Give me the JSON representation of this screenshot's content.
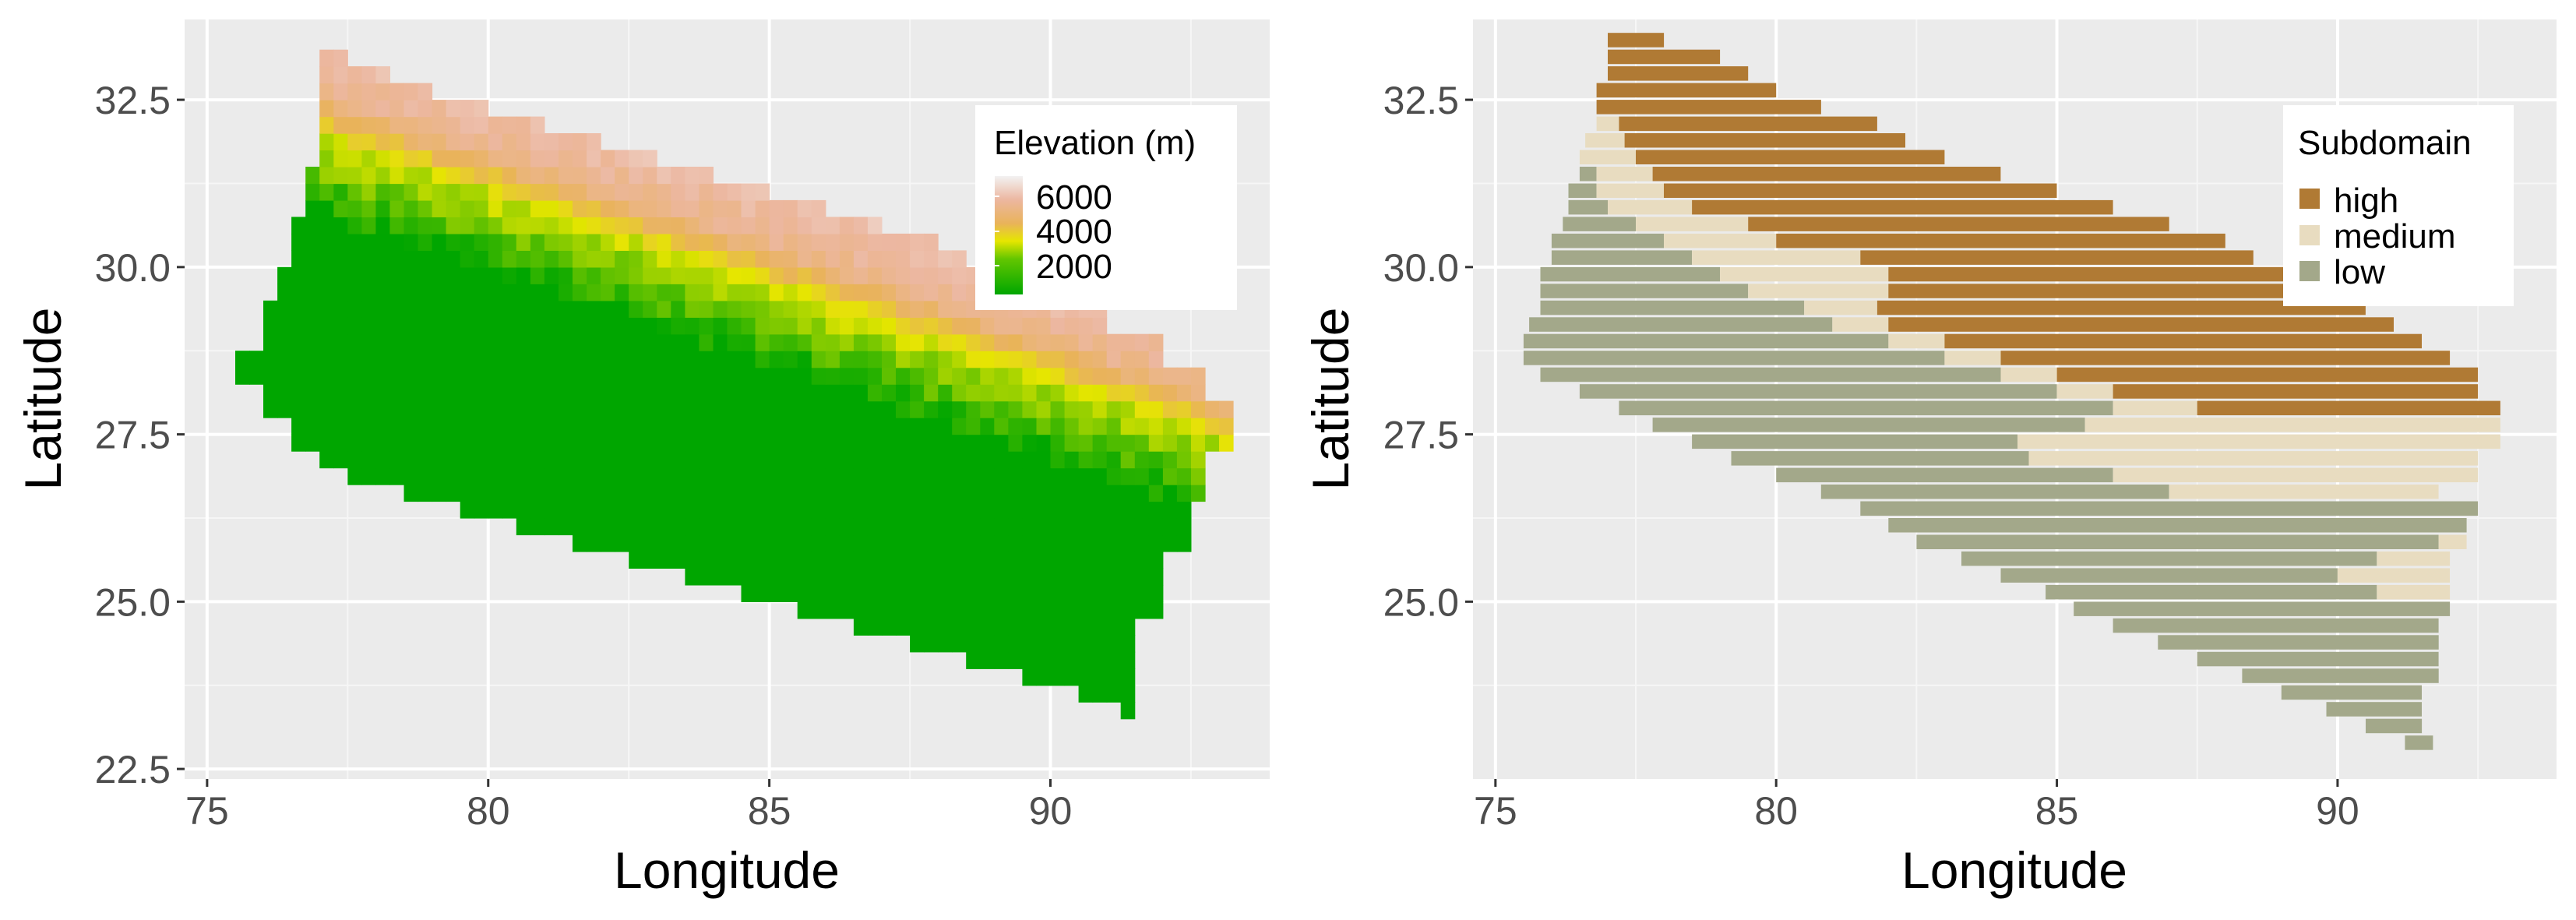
{
  "chart_data": [
    {
      "type": "heatmap",
      "xlabel": "Longitude",
      "ylabel": "Latitude",
      "xlim": [
        74.6,
        93.9
      ],
      "ylim": [
        22.35,
        33.7
      ],
      "x_ticks": [
        75,
        80,
        85,
        90
      ],
      "y_ticks": [
        22.5,
        25.0,
        27.5,
        30.0,
        32.5
      ],
      "x_tick_labels": [
        "75",
        "80",
        "85",
        "90"
      ],
      "y_tick_labels": [
        "22.5",
        "25.0",
        "27.5",
        "30.0",
        "32.5"
      ],
      "cell_size": [
        0.5,
        0.25
      ],
      "region_polygon": [
        [
          77.1,
          33.25
        ],
        [
          77.5,
          33.25
        ],
        [
          77.5,
          33.0
        ],
        [
          78.3,
          33.0
        ],
        [
          78.3,
          32.75
        ],
        [
          79.0,
          32.75
        ],
        [
          79.0,
          32.5
        ],
        [
          80.0,
          32.5
        ],
        [
          80.0,
          32.25
        ],
        [
          81.0,
          32.25
        ],
        [
          81.0,
          32.0
        ],
        [
          82.0,
          32.0
        ],
        [
          82.0,
          31.75
        ],
        [
          83.0,
          31.75
        ],
        [
          83.0,
          31.5
        ],
        [
          84.0,
          31.5
        ],
        [
          84.0,
          31.25
        ],
        [
          85.0,
          31.25
        ],
        [
          85.0,
          31.0
        ],
        [
          86.0,
          31.0
        ],
        [
          86.0,
          30.75
        ],
        [
          87.0,
          30.75
        ],
        [
          87.0,
          30.5
        ],
        [
          88.0,
          30.5
        ],
        [
          88.0,
          30.25
        ],
        [
          88.5,
          30.25
        ],
        [
          88.5,
          30.0
        ],
        [
          89.5,
          30.0
        ],
        [
          89.5,
          29.75
        ],
        [
          90.5,
          29.75
        ],
        [
          90.5,
          29.5
        ],
        [
          91.0,
          29.5
        ],
        [
          91.0,
          29.0
        ],
        [
          92.0,
          29.0
        ],
        [
          92.0,
          28.5
        ],
        [
          92.7,
          28.5
        ],
        [
          92.7,
          28.0
        ],
        [
          93.2,
          28.0
        ],
        [
          93.2,
          27.25
        ],
        [
          92.7,
          27.25
        ],
        [
          92.7,
          26.5
        ],
        [
          92.5,
          26.5
        ],
        [
          92.5,
          25.75
        ],
        [
          92.0,
          25.75
        ],
        [
          92.0,
          24.75
        ],
        [
          91.5,
          24.75
        ],
        [
          91.5,
          24.0
        ],
        [
          91.5,
          23.25
        ],
        [
          91.2,
          23.25
        ],
        [
          91.2,
          23.5
        ],
        [
          90.5,
          23.5
        ],
        [
          90.5,
          23.75
        ],
        [
          89.5,
          23.75
        ],
        [
          89.5,
          24.0
        ],
        [
          88.5,
          24.0
        ],
        [
          88.5,
          24.25
        ],
        [
          87.5,
          24.25
        ],
        [
          87.5,
          24.5
        ],
        [
          86.5,
          24.5
        ],
        [
          86.5,
          24.75
        ],
        [
          85.5,
          24.75
        ],
        [
          85.5,
          25.0
        ],
        [
          84.5,
          25.0
        ],
        [
          84.5,
          25.25
        ],
        [
          83.5,
          25.25
        ],
        [
          83.5,
          25.5
        ],
        [
          82.5,
          25.5
        ],
        [
          82.5,
          25.75
        ],
        [
          81.5,
          25.75
        ],
        [
          81.5,
          26.0
        ],
        [
          80.5,
          26.0
        ],
        [
          80.5,
          26.25
        ],
        [
          79.5,
          26.25
        ],
        [
          79.5,
          26.5
        ],
        [
          78.5,
          26.5
        ],
        [
          78.5,
          26.75
        ],
        [
          77.5,
          26.75
        ],
        [
          77.5,
          27.0
        ],
        [
          77.0,
          27.0
        ],
        [
          77.0,
          27.25
        ],
        [
          76.5,
          27.25
        ],
        [
          76.5,
          27.75
        ],
        [
          76.0,
          27.75
        ],
        [
          76.0,
          28.25
        ],
        [
          75.6,
          28.25
        ],
        [
          75.6,
          28.75
        ],
        [
          75.9,
          28.75
        ],
        [
          75.9,
          29.5
        ],
        [
          76.2,
          29.5
        ],
        [
          76.2,
          30.0
        ],
        [
          76.5,
          30.0
        ],
        [
          76.5,
          30.75
        ],
        [
          76.8,
          30.75
        ],
        [
          76.8,
          31.5
        ],
        [
          76.9,
          31.5
        ],
        [
          76.9,
          32.25
        ],
        [
          77.0,
          32.25
        ],
        [
          77.0,
          32.75
        ],
        [
          77.1,
          32.75
        ]
      ],
      "legend": {
        "title": "Elevation (m)",
        "labels": [
          "6000",
          "4000",
          "2000"
        ],
        "values": [
          6000,
          4000,
          2000
        ],
        "color_stops": [
          {
            "value": 6500,
            "color": "#f2f2f2"
          },
          {
            "value": 5200,
            "color": "#ecb7a0"
          },
          {
            "value": 4000,
            "color": "#e9b35a"
          },
          {
            "value": 3000,
            "color": "#e6e600"
          },
          {
            "value": 1500,
            "color": "#00a600"
          }
        ]
      }
    },
    {
      "type": "heatmap",
      "xlabel": "Longitude",
      "ylabel": "Latitude",
      "xlim": [
        74.6,
        93.9
      ],
      "ylim": [
        22.35,
        33.7
      ],
      "x_ticks": [
        75,
        80,
        85,
        90
      ],
      "y_ticks": [
        25.0,
        27.5,
        30.0,
        32.5
      ],
      "x_tick_labels": [
        "75",
        "80",
        "85",
        "90"
      ],
      "y_tick_labels": [
        "25.0",
        "27.5",
        "30.0",
        "32.5"
      ],
      "cell_size": [
        0.5,
        0.25
      ],
      "legend": {
        "title": "Subdomain",
        "categories": [
          "high",
          "medium",
          "low"
        ],
        "colors": [
          "#b07a34",
          "#e8dcc0",
          "#a3a88a"
        ]
      },
      "rows": [
        {
          "lat": 33.25,
          "low": null,
          "mid": null,
          "hi": [
            77.0,
            78.0
          ]
        },
        {
          "lat": 33.0,
          "low": null,
          "mid": null,
          "hi": [
            77.0,
            79.0
          ]
        },
        {
          "lat": 32.75,
          "low": null,
          "mid": null,
          "hi": [
            77.0,
            79.5
          ]
        },
        {
          "lat": 32.5,
          "low": null,
          "mid": null,
          "hi": [
            76.8,
            80.0
          ]
        },
        {
          "lat": 32.25,
          "low": null,
          "mid": null,
          "hi": [
            76.8,
            80.8
          ]
        },
        {
          "lat": 32.0,
          "low": null,
          "mid": [
            76.8,
            77.2
          ],
          "hi": [
            77.2,
            81.8
          ]
        },
        {
          "lat": 31.75,
          "low": null,
          "mid": [
            76.6,
            77.3
          ],
          "hi": [
            77.3,
            82.3
          ]
        },
        {
          "lat": 31.5,
          "low": null,
          "mid": [
            76.5,
            77.5
          ],
          "hi": [
            77.5,
            83.0
          ]
        },
        {
          "lat": 31.25,
          "low": [
            76.5,
            76.8
          ],
          "mid": [
            76.8,
            77.8
          ],
          "hi": [
            77.8,
            84.0
          ]
        },
        {
          "lat": 31.0,
          "low": [
            76.3,
            76.8
          ],
          "mid": [
            76.8,
            78.0
          ],
          "hi": [
            78.0,
            85.0
          ]
        },
        {
          "lat": 30.75,
          "low": [
            76.3,
            77.0
          ],
          "mid": [
            77.0,
            78.5
          ],
          "hi": [
            78.5,
            86.0
          ]
        },
        {
          "lat": 30.5,
          "low": [
            76.2,
            77.5
          ],
          "mid": [
            77.5,
            79.5
          ],
          "hi": [
            79.5,
            87.0
          ]
        },
        {
          "lat": 30.25,
          "low": [
            76.0,
            78.0
          ],
          "mid": [
            78.0,
            80.0
          ],
          "hi": [
            80.0,
            88.0
          ]
        },
        {
          "lat": 30.0,
          "low": [
            76.0,
            78.5
          ],
          "mid": [
            78.5,
            81.5
          ],
          "hi": [
            81.5,
            88.5
          ]
        },
        {
          "lat": 29.75,
          "low": [
            75.8,
            79.0
          ],
          "mid": [
            79.0,
            82.0
          ],
          "hi": [
            82.0,
            89.5
          ]
        },
        {
          "lat": 29.5,
          "low": [
            75.8,
            79.5
          ],
          "mid": [
            79.5,
            82.0
          ],
          "hi": [
            82.0,
            90.0
          ]
        },
        {
          "lat": 29.25,
          "low": [
            75.8,
            80.5
          ],
          "mid": [
            80.5,
            81.8
          ],
          "hi": [
            81.8,
            90.5
          ]
        },
        {
          "lat": 29.0,
          "low": [
            75.6,
            81.0
          ],
          "mid": [
            81.0,
            82.0
          ],
          "hi": [
            82.0,
            91.0
          ]
        },
        {
          "lat": 28.75,
          "low": [
            75.5,
            82.0
          ],
          "mid": [
            82.0,
            83.0
          ],
          "hi": [
            83.0,
            91.5
          ]
        },
        {
          "lat": 28.5,
          "low": [
            75.5,
            83.0
          ],
          "mid": [
            83.0,
            84.0
          ],
          "hi": [
            84.0,
            92.0
          ]
        },
        {
          "lat": 28.25,
          "low": [
            75.8,
            84.0
          ],
          "mid": [
            84.0,
            85.0
          ],
          "hi": [
            85.0,
            92.5
          ]
        },
        {
          "lat": 28.0,
          "low": [
            76.5,
            85.0
          ],
          "mid": [
            85.0,
            86.0
          ],
          "hi": [
            86.0,
            92.5
          ]
        },
        {
          "lat": 27.75,
          "low": [
            77.2,
            86.0
          ],
          "mid": [
            86.0,
            87.5
          ],
          "hi": [
            87.5,
            92.9
          ]
        },
        {
          "lat": 27.5,
          "low": [
            77.8,
            85.5
          ],
          "mid": [
            85.5,
            92.9
          ],
          "hi": null
        },
        {
          "lat": 27.25,
          "low": [
            78.5,
            84.3
          ],
          "mid": [
            84.3,
            92.9
          ],
          "hi": null
        },
        {
          "lat": 27.0,
          "low": [
            79.2,
            84.5
          ],
          "mid": [
            84.5,
            92.5
          ],
          "hi": null
        },
        {
          "lat": 26.75,
          "low": [
            80.0,
            86.0
          ],
          "mid": [
            86.0,
            92.5
          ],
          "hi": null
        },
        {
          "lat": 26.5,
          "low": [
            80.8,
            87.0
          ],
          "mid": [
            87.0,
            91.8
          ],
          "hi": null
        },
        {
          "lat": 26.25,
          "low": [
            81.5,
            92.5
          ],
          "mid": null,
          "hi": null
        },
        {
          "lat": 26.0,
          "low": [
            82.0,
            92.3
          ],
          "mid": null,
          "hi": null
        },
        {
          "lat": 25.75,
          "low": [
            82.5,
            91.8
          ],
          "mid": [
            91.8,
            92.3
          ],
          "hi": null
        },
        {
          "lat": 25.5,
          "low": [
            83.3,
            90.7
          ],
          "mid": [
            90.7,
            92.0
          ],
          "hi": null
        },
        {
          "lat": 25.25,
          "low": [
            84.0,
            90.0
          ],
          "mid": [
            90.0,
            92.0
          ],
          "hi": null
        },
        {
          "lat": 25.0,
          "low": [
            84.8,
            90.7
          ],
          "mid": [
            90.7,
            92.0
          ],
          "hi": null
        },
        {
          "lat": 24.75,
          "low": [
            85.3,
            92.0
          ],
          "mid": null,
          "hi": null
        },
        {
          "lat": 24.5,
          "low": [
            86.0,
            91.8
          ],
          "mid": null,
          "hi": null
        },
        {
          "lat": 24.25,
          "low": [
            86.8,
            91.8
          ],
          "mid": null,
          "hi": null
        },
        {
          "lat": 24.0,
          "low": [
            87.5,
            91.8
          ],
          "mid": null,
          "hi": null
        },
        {
          "lat": 23.75,
          "low": [
            88.3,
            91.8
          ],
          "mid": null,
          "hi": null
        },
        {
          "lat": 23.5,
          "low": [
            89.0,
            91.5
          ],
          "mid": null,
          "hi": null
        },
        {
          "lat": 23.25,
          "low": [
            89.8,
            91.5
          ],
          "mid": null,
          "hi": null
        },
        {
          "lat": 23.0,
          "low": [
            90.5,
            91.5
          ],
          "mid": null,
          "hi": null
        },
        {
          "lat": 22.75,
          "low": [
            91.2,
            91.7
          ],
          "mid": null,
          "hi": null
        }
      ]
    }
  ]
}
